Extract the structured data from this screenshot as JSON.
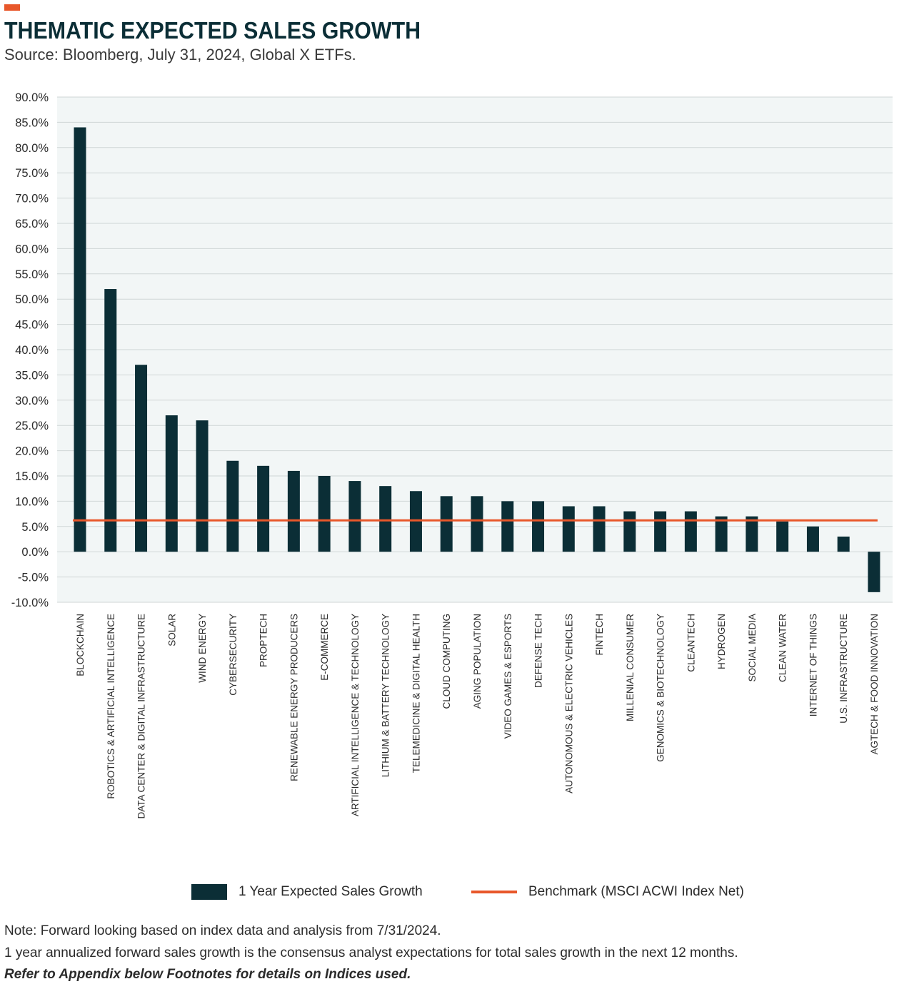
{
  "header": {
    "title": "THEMATIC EXPECTED SALES GROWTH",
    "subtitle": "Source: Bloomberg, July 31, 2024, Global X ETFs."
  },
  "colors": {
    "accent": "#e8572a",
    "bar": "#0b2e36",
    "benchmark": "#e8572a",
    "plot_bg": "#f2f6f6",
    "grid": "#cfd6d6"
  },
  "chart_data": {
    "type": "bar",
    "title": "THEMATIC EXPECTED SALES GROWTH",
    "xlabel": "",
    "ylabel": "",
    "ylim": [
      -10,
      90
    ],
    "y_ticks": [
      90,
      85,
      80,
      75,
      70,
      65,
      60,
      55,
      50,
      45,
      40,
      35,
      30,
      25,
      20,
      15,
      10,
      5,
      0,
      -5,
      -10
    ],
    "y_tick_labels": [
      "90.0%",
      "85.0%",
      "80.0%",
      "75.0%",
      "70.0%",
      "65.0%",
      "60.0%",
      "55.0%",
      "50.0%",
      "45.0%",
      "40.0%",
      "35.0%",
      "30.0%",
      "25.0%",
      "20.0%",
      "15.0%",
      "10.0%",
      "5.0%",
      "0.0%",
      "-5.0%",
      "-10.0%"
    ],
    "grid": true,
    "legend_position": "bottom",
    "categories": [
      "BLOCKCHAIN",
      "ROBOTICS & ARTIFICIAL INTELLIGENCE",
      "DATA CENTER & DIGITAL INFRASTRUCTURE",
      "SOLAR",
      "WIND ENERGY",
      "CYBERSECURITY",
      "PROPTECH",
      "RENEWABLE ENERGY PRODUCERS",
      "E-COMMERCE",
      "ARTIFICIAL INTELLIGENCE & TECHNOLOGY",
      "LITHIUM & BATTERY TECHNOLOGY",
      "TELEMEDICINE & DIGITAL HEALTH",
      "CLOUD COMPUTING",
      "AGING POPULATION",
      "VIDEO GAMES & ESPORTS",
      "DEFENSE TECH",
      "AUTONOMOUS & ELECTRIC VEHICLES",
      "FINTECH",
      "MILLENIAL CONSUMER",
      "GENOMICS & BIOTECHNOLOGY",
      "CLEANTECH",
      "HYDROGEN",
      "SOCIAL MEDIA",
      "CLEAN WATER",
      "INTERNET OF THINGS",
      "U.S. INFRASTRUCTURE",
      "AGTECH & FOOD INNOVATION"
    ],
    "series": [
      {
        "name": "1 Year Expected Sales Growth",
        "type": "bar",
        "values": [
          84,
          52,
          37,
          27,
          26,
          18,
          17,
          16,
          15,
          14,
          13,
          12,
          11,
          11,
          10,
          10,
          9,
          9,
          8,
          8,
          8,
          7,
          7,
          6,
          5,
          3,
          -8
        ]
      },
      {
        "name": "Benchmark (MSCI ACWI Index Net)",
        "type": "line",
        "value": 6.2
      }
    ]
  },
  "legend": {
    "bar_label": "1 Year Expected Sales Growth",
    "line_label": "Benchmark (MSCI ACWI Index Net)"
  },
  "footer": {
    "note1": "Note: Forward looking based on index data and analysis from 7/31/2024.",
    "note2": "1 year annualized forward sales growth is the consensus analyst expectations for total sales growth in the next 12 months.",
    "note3": "Refer to Appendix below Footnotes for details on Indices used."
  }
}
